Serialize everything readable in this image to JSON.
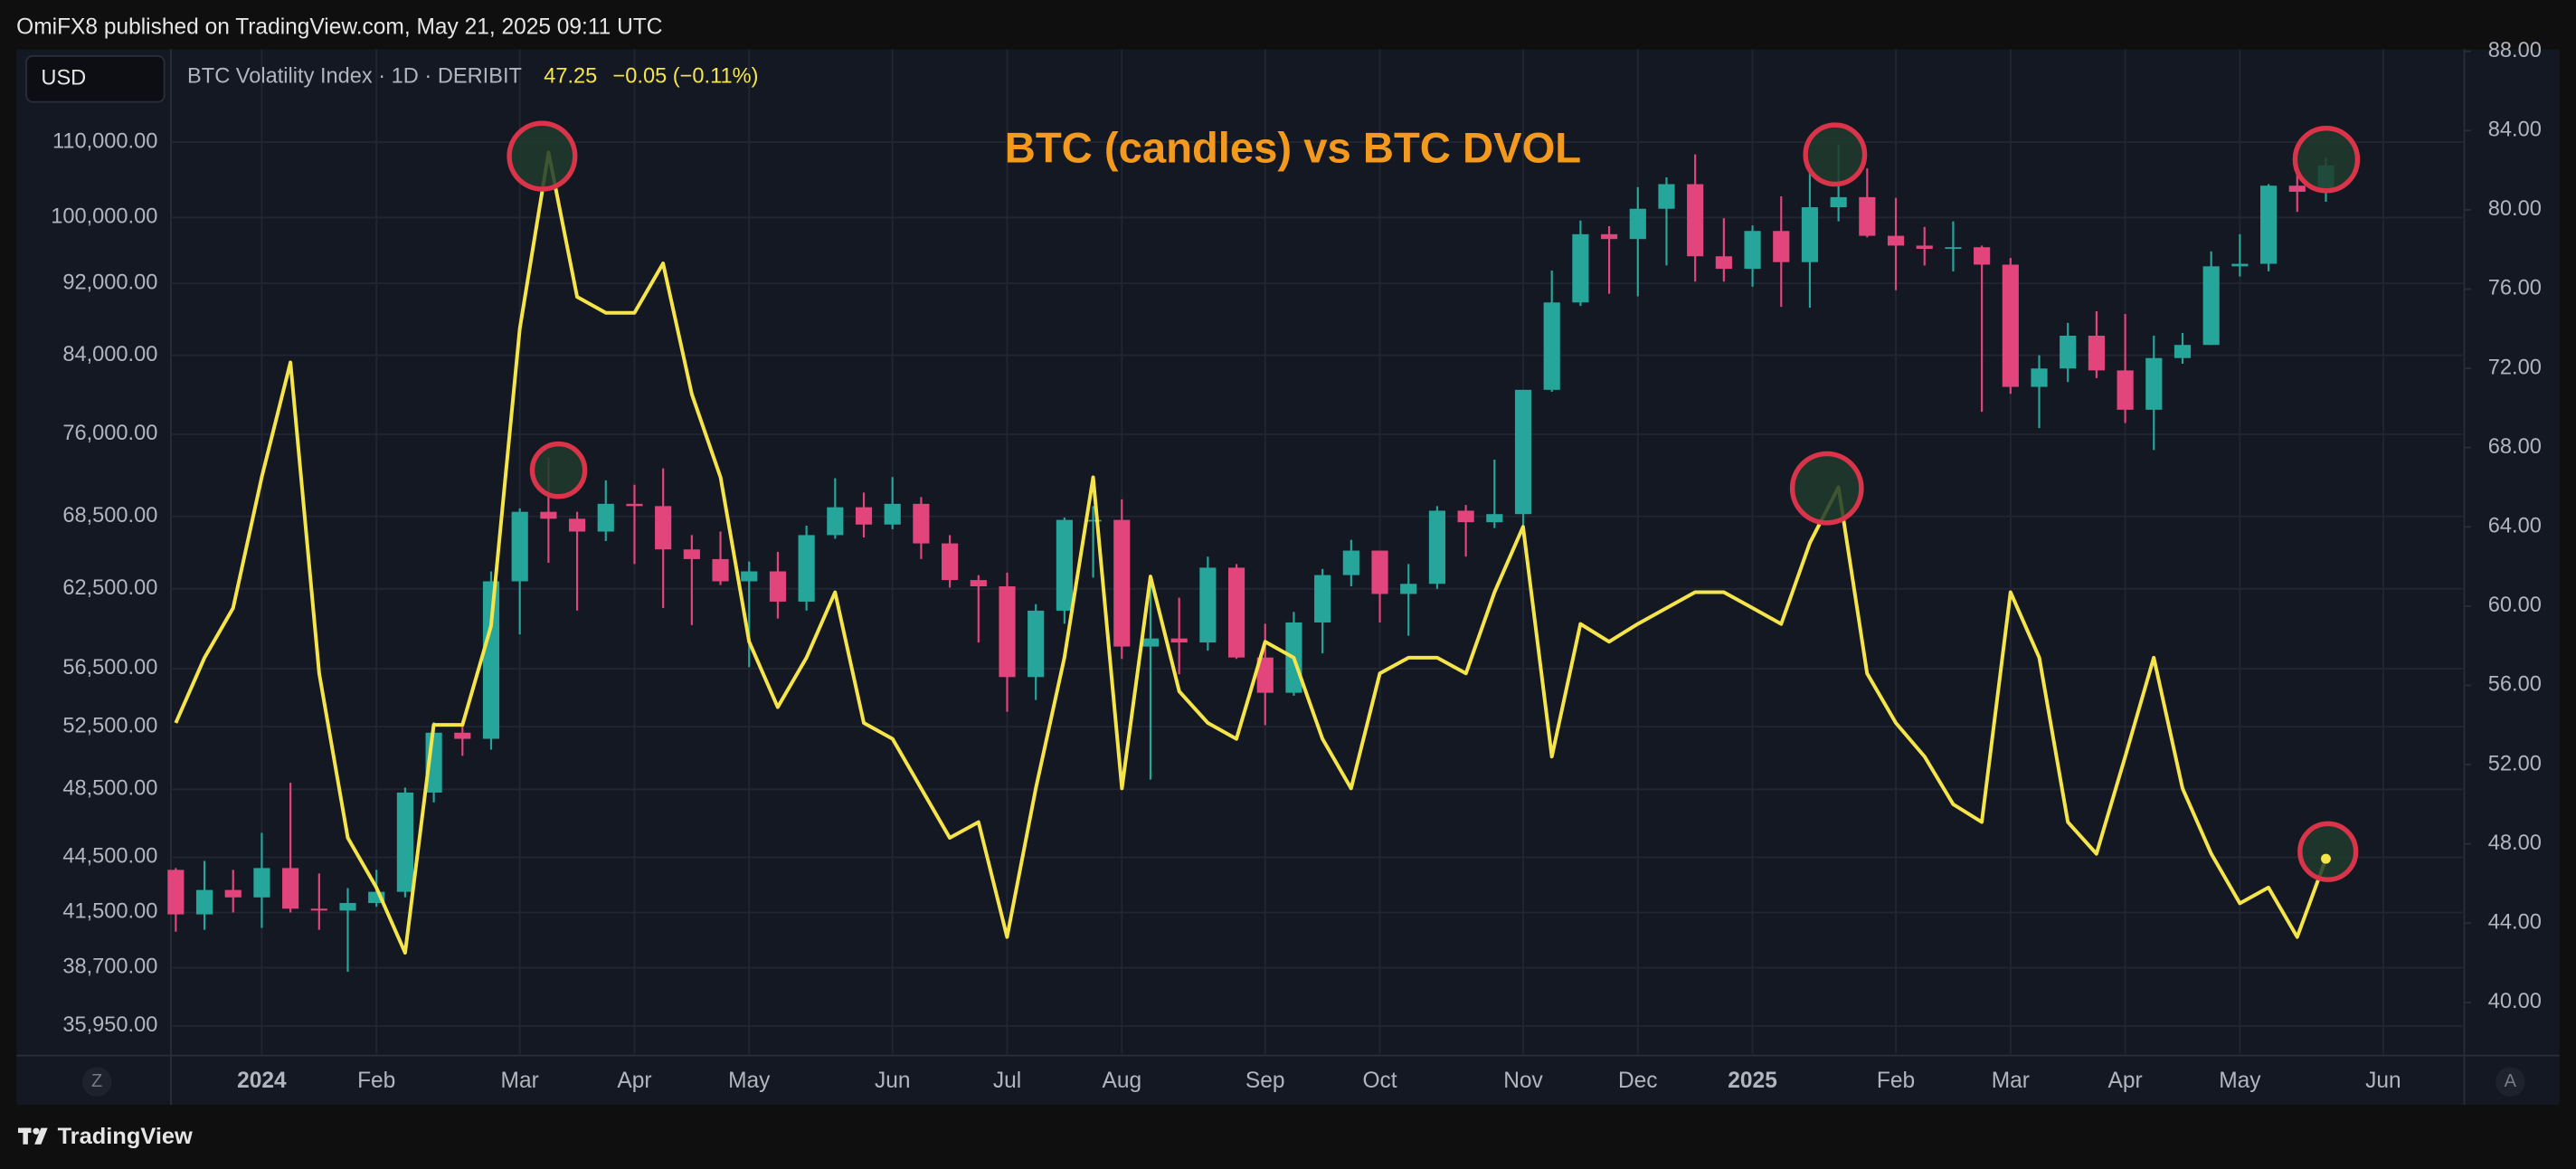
{
  "header": {
    "publisher": "OmiFX8 published on TradingView.com, May 21, 2025 09:11 UTC",
    "currency": "USD",
    "symbol": "BTC Volatility Index · 1D · DERIBIT",
    "change": "−0.05 (−0.11%)",
    "brand": "TradingView",
    "left_button": "Z",
    "right_button": "A"
  },
  "chart_data": {
    "type": "candlestick",
    "title": "BTC (candles) vs BTC DVOL",
    "log": true,
    "grid": true,
    "up_color": "#26a69a",
    "down_color": "#e2447c",
    "categories": [
      null,
      null,
      null,
      "2024",
      null,
      null,
      null,
      "Feb",
      null,
      null,
      null,
      null,
      "Mar",
      null,
      null,
      null,
      "Apr",
      null,
      null,
      null,
      "May",
      null,
      null,
      null,
      null,
      "Jun",
      null,
      null,
      null,
      "Jul",
      null,
      null,
      null,
      "Aug",
      null,
      null,
      null,
      null,
      "Sep",
      null,
      null,
      null,
      "Oct",
      null,
      null,
      null,
      null,
      "Nov",
      null,
      null,
      null,
      "Dec",
      null,
      null,
      null,
      "2025",
      null,
      null,
      null,
      null,
      "Feb",
      null,
      null,
      null,
      "Mar",
      null,
      null,
      null,
      "Apr",
      null,
      null,
      null,
      "May",
      null,
      null,
      null,
      null,
      "Jun",
      null,
      null
    ],
    "open": [
      43800,
      41400,
      42700,
      42300,
      43900,
      41700,
      41600,
      42000,
      42600,
      48300,
      52100,
      51700,
      63100,
      68900,
      68300,
      67200,
      69600,
      69400,
      65700,
      64900,
      63100,
      63900,
      61500,
      66900,
      69300,
      67800,
      69600,
      66200,
      63200,
      62700,
      55900,
      60800,
      68200,
      68200,
      58100,
      58700,
      58400,
      64200,
      57300,
      54800,
      59900,
      63600,
      65600,
      62100,
      62900,
      69000,
      68000,
      68700,
      80400,
      89800,
      97900,
      97300,
      101100,
      104300,
      95200,
      93700,
      98300,
      94500,
      101300,
      102600,
      97700,
      96500,
      96100,
      96300,
      94200,
      80700,
      82600,
      86100,
      82400,
      78400,
      83700,
      85100,
      94000,
      94300,
      104100,
      103300,
      null,
      null,
      null,
      null
    ],
    "high": [
      43900,
      44300,
      43800,
      45900,
      48900,
      43600,
      42800,
      43800,
      48600,
      52800,
      52900,
      63900,
      69200,
      73800,
      68900,
      71700,
      71300,
      72800,
      66900,
      67200,
      64700,
      65500,
      67700,
      71900,
      70600,
      72000,
      70200,
      66900,
      63600,
      63800,
      61300,
      68400,
      69400,
      70000,
      62700,
      61800,
      65100,
      64500,
      59800,
      60700,
      64100,
      66500,
      65600,
      64500,
      69400,
      69500,
      73600,
      80400,
      93500,
      99600,
      98900,
      103900,
      105200,
      108300,
      99900,
      99000,
      102700,
      106400,
      109600,
      106400,
      102500,
      98800,
      99500,
      96500,
      95000,
      84000,
      87500,
      88800,
      88500,
      86100,
      86400,
      95800,
      97900,
      104300,
      105800,
      107900,
      null,
      null,
      null,
      null
    ],
    "low": [
      40500,
      40600,
      41500,
      40700,
      41500,
      40600,
      38500,
      41800,
      42300,
      47700,
      50600,
      51000,
      59000,
      64600,
      60800,
      66400,
      64500,
      61000,
      59700,
      62800,
      56600,
      60200,
      60800,
      66600,
      66700,
      67400,
      64900,
      62600,
      58400,
      53500,
      54300,
      59800,
      63400,
      57200,
      49100,
      56100,
      57800,
      57200,
      52600,
      54600,
      57600,
      62700,
      59900,
      58900,
      62500,
      65100,
      67500,
      66800,
      80200,
      89400,
      90800,
      90500,
      94100,
      92200,
      92200,
      91600,
      89300,
      89200,
      99500,
      97500,
      91200,
      94100,
      93400,
      78200,
      80000,
      76600,
      81200,
      81600,
      77100,
      74500,
      83100,
      85100,
      92800,
      93400,
      100700,
      102000,
      null,
      null,
      null,
      null
    ],
    "close": [
      41400,
      42700,
      42300,
      43900,
      41700,
      41600,
      42000,
      42600,
      48300,
      52100,
      51700,
      63100,
      68900,
      68300,
      67200,
      69600,
      69400,
      65700,
      64900,
      63100,
      63900,
      61500,
      66900,
      69300,
      67800,
      69600,
      66200,
      63200,
      62700,
      55900,
      60800,
      68200,
      68200,
      58100,
      58700,
      58400,
      64200,
      57300,
      54800,
      59900,
      63600,
      65600,
      62100,
      62900,
      69000,
      68000,
      68700,
      80400,
      89800,
      97900,
      97300,
      101100,
      104300,
      95200,
      93700,
      98300,
      94500,
      101300,
      102600,
      97700,
      96500,
      96100,
      96300,
      94200,
      80700,
      82600,
      86100,
      82400,
      78400,
      83700,
      85100,
      94000,
      94300,
      104100,
      103300,
      106800,
      null,
      null,
      null,
      null
    ],
    "ylim": [
      34700,
      123700
    ],
    "yticks": [
      {
        "value": 35950,
        "label": "35,950.00"
      },
      {
        "value": 38700,
        "label": "38,700.00"
      },
      {
        "value": 41500,
        "label": "41,500.00"
      },
      {
        "value": 44500,
        "label": "44,500.00"
      },
      {
        "value": 48500,
        "label": "48,500.00"
      },
      {
        "value": 52500,
        "label": "52,500.00"
      },
      {
        "value": 56500,
        "label": "56,500.00"
      },
      {
        "value": 62500,
        "label": "62,500.00"
      },
      {
        "value": 68500,
        "label": "68,500.00"
      },
      {
        "value": 76000,
        "label": "76,000.00"
      },
      {
        "value": 84000,
        "label": "84,000.00"
      },
      {
        "value": 92000,
        "label": "92,000.00"
      },
      {
        "value": 100000,
        "label": "100,000.00"
      },
      {
        "value": 110000,
        "label": "110,000.00"
      }
    ],
    "line": {
      "type": "line",
      "axis": "y2",
      "color": "#f5e54a",
      "values": [
        54.1,
        57.4,
        59.9,
        66.5,
        72.3,
        56.6,
        48.3,
        45.8,
        42.5,
        54,
        54,
        59,
        74,
        82.9,
        75.6,
        74.8,
        74.8,
        77.3,
        70.7,
        66.5,
        58.2,
        54.9,
        57.4,
        60.7,
        54.1,
        53.3,
        50.8,
        48.3,
        49.1,
        43.3,
        50.8,
        57.4,
        66.5,
        50.8,
        61.5,
        55.7,
        54.1,
        53.3,
        58.2,
        57.4,
        53.3,
        50.8,
        56.6,
        57.4,
        57.4,
        56.6,
        60.7,
        64,
        52.4,
        59.1,
        58.2,
        59.1,
        59.9,
        60.7,
        60.7,
        59.9,
        59.1,
        63.2,
        66,
        56.6,
        54.1,
        52.4,
        50,
        49.1,
        60.7,
        57.4,
        49.1,
        47.5,
        52.4,
        57.4,
        50.8,
        47.5,
        45,
        45.8,
        43.3,
        47.25,
        null,
        null,
        null,
        null
      ]
    },
    "y2lim": [
      37.4,
      88.1
    ],
    "y2ticks": [
      {
        "value": 40,
        "label": "40.00"
      },
      {
        "value": 44,
        "label": "44.00"
      },
      {
        "value": 48,
        "label": "48.00"
      },
      {
        "value": 52,
        "label": "52.00"
      },
      {
        "value": 56,
        "label": "56.00"
      },
      {
        "value": 60,
        "label": "60.00"
      },
      {
        "value": 64,
        "label": "64.00"
      },
      {
        "value": 68,
        "label": "68.00"
      },
      {
        "value": 72,
        "label": "72.00"
      },
      {
        "value": 76,
        "label": "76.00"
      },
      {
        "value": 80,
        "label": "80.00"
      },
      {
        "value": 84,
        "label": "84.00"
      },
      {
        "value": 88,
        "label": "88.00"
      }
    ]
  }
}
